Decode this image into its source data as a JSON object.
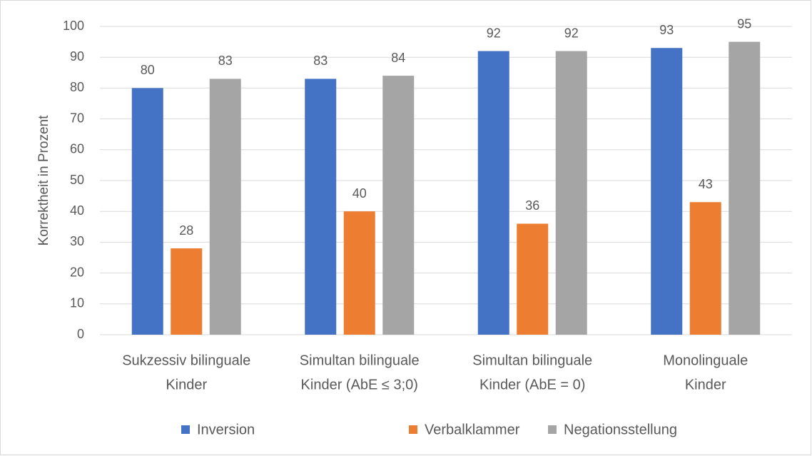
{
  "chart_data": {
    "type": "bar",
    "y_label": "Korrektheit in Prozent",
    "categories": [
      [
        "Sukzessiv bilinguale",
        "Kinder"
      ],
      [
        "Simultan bilinguale",
        "Kinder (AbE ≤ 3;0)"
      ],
      [
        "Simultan bilinguale",
        "Kinder (AbE = 0)"
      ],
      [
        "Monolinguale",
        "Kinder"
      ]
    ],
    "series": [
      {
        "name": "Inversion",
        "color": "#4472c4",
        "values": [
          80,
          83,
          92,
          93
        ]
      },
      {
        "name": "Verbalklammer",
        "color": "#ed7d31",
        "values": [
          28,
          40,
          36,
          43
        ]
      },
      {
        "name": "Negationsstellung",
        "color": "#a5a5a5",
        "values": [
          83,
          84,
          92,
          95
        ]
      }
    ],
    "ylim": [
      0,
      100
    ],
    "yticks": [
      0,
      10,
      20,
      30,
      40,
      50,
      60,
      70,
      80,
      90,
      100
    ],
    "grid": true,
    "legend": "bottom"
  }
}
